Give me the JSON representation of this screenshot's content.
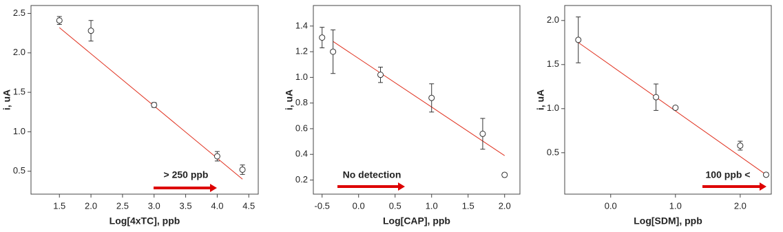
{
  "chart_data": [
    {
      "type": "scatter",
      "xlabel": "Log[4xTC], ppb",
      "ylabel": "i, uA",
      "annotation": "> 250 ppb",
      "x": [
        1.5,
        2.0,
        3.0,
        4.0,
        4.4
      ],
      "values": [
        2.41,
        2.28,
        1.34,
        0.69,
        0.52
      ],
      "errors": [
        0.05,
        0.13,
        0.03,
        0.06,
        0.06
      ],
      "fit": {
        "x": [
          1.5,
          4.4
        ],
        "y": [
          2.32,
          0.4
        ]
      },
      "color": "#333333",
      "fit_color": "#e0301e",
      "arrow_color": "#dd0000",
      "xlim": [
        1.05,
        4.65
      ],
      "ylim": [
        0.21,
        2.6
      ],
      "xticks": [
        {
          "value": 1.5,
          "label": "1.5"
        },
        {
          "value": 2,
          "label": "2.0"
        },
        2.5,
        {
          "value": 3,
          "label": "3.0"
        },
        3.5,
        {
          "value": 4,
          "label": "4.0"
        },
        4.5
      ],
      "yticks": [
        {
          "value": 0.5,
          "label": "0.5"
        },
        {
          "value": 1,
          "label": "1.0"
        },
        {
          "value": 1.5,
          "label": "1.5"
        },
        {
          "value": 2,
          "label": "2.0"
        },
        2.5
      ]
    },
    {
      "type": "scatter",
      "xlabel": "Log[CAP], ppb",
      "ylabel": "i, uA",
      "annotation": "No detection",
      "x": [
        -0.5,
        -0.35,
        0.3,
        1.0,
        1.7,
        2.0
      ],
      "values": [
        1.31,
        1.2,
        1.02,
        0.84,
        0.56,
        0.24
      ],
      "errors": [
        0.08,
        0.17,
        0.06,
        0.11,
        0.12,
        0.015
      ],
      "fit": {
        "x": [
          -0.35,
          2.0
        ],
        "y": [
          1.28,
          0.39
        ]
      },
      "color": "#333333",
      "fit_color": "#e0301e",
      "arrow_color": "#dd0000",
      "xlim": [
        -0.62,
        2.21
      ],
      "ylim": [
        0.09,
        1.56
      ],
      "xticks": [
        -0.5,
        {
          "value": 0,
          "label": "0.0"
        },
        0.5,
        {
          "value": 1,
          "label": "1.0"
        },
        1.5,
        {
          "value": 2,
          "label": "2.0"
        }
      ],
      "yticks": [
        0.2,
        0.4,
        0.6,
        0.8,
        {
          "value": 1,
          "label": "1.0"
        },
        1.2,
        1.4
      ]
    },
    {
      "type": "scatter",
      "xlabel": "Log[SDM], ppb",
      "ylabel": "i, uA",
      "annotation": "100 ppb <",
      "x": [
        -0.5,
        0.7,
        1.0,
        2.0,
        2.4
      ],
      "values": [
        1.78,
        1.13,
        1.01,
        0.58,
        0.25
      ],
      "errors": [
        0.26,
        0.15,
        0.02,
        0.05,
        0.02
      ],
      "fit": {
        "x": [
          -0.5,
          2.4
        ],
        "y": [
          1.75,
          0.25
        ]
      },
      "color": "#333333",
      "fit_color": "#e0301e",
      "arrow_color": "#dd0000",
      "xlim": [
        -0.71,
        2.48
      ],
      "ylim": [
        0.03,
        2.17
      ],
      "xticks": [
        {
          "value": 0,
          "label": "0.0"
        },
        {
          "value": 1,
          "label": "1.0"
        },
        {
          "value": 2,
          "label": "2.0"
        }
      ],
      "yticks": [
        0.5,
        {
          "value": 1,
          "label": "1.0"
        },
        1.5,
        {
          "value": 2,
          "label": "2.0"
        }
      ]
    }
  ]
}
